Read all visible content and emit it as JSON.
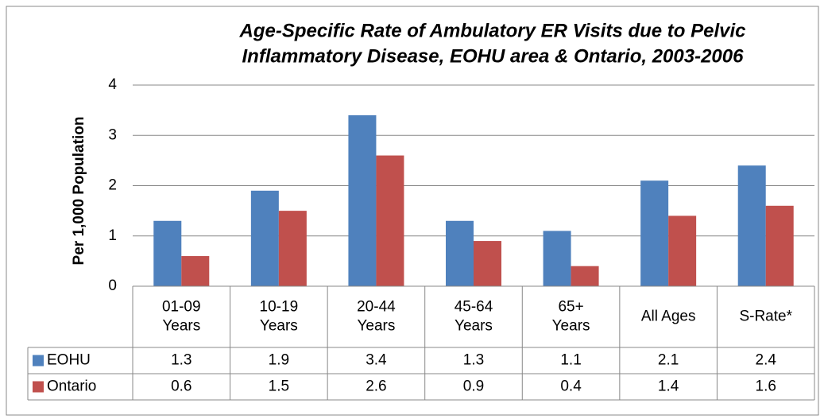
{
  "chart_data": {
    "type": "bar",
    "title": [
      "Age-Specific Rate of Ambulatory ER Visits due to Pelvic",
      "Inflammatory Disease, EOHU area & Ontario, 2003-2006"
    ],
    "y_label": "Per 1,000 Population",
    "categories": [
      [
        "01-09",
        "Years"
      ],
      [
        "10-19",
        "Years"
      ],
      [
        "20-44",
        "Years"
      ],
      [
        "45-64",
        "Years"
      ],
      [
        "65+",
        "Years"
      ],
      [
        "All Ages"
      ],
      [
        "S-Rate*"
      ]
    ],
    "series": [
      {
        "name": "EOHU",
        "color": "#4f81bd",
        "values": [
          1.3,
          1.9,
          3.4,
          1.3,
          1.1,
          2.1,
          2.4
        ]
      },
      {
        "name": "Ontario",
        "color": "#c0504d",
        "values": [
          0.6,
          1.5,
          2.6,
          0.9,
          0.4,
          1.4,
          1.6
        ]
      }
    ],
    "ylim": [
      0,
      4
    ],
    "yticks": [
      0,
      1,
      2,
      3,
      4
    ],
    "grid": true,
    "legend": "table"
  }
}
